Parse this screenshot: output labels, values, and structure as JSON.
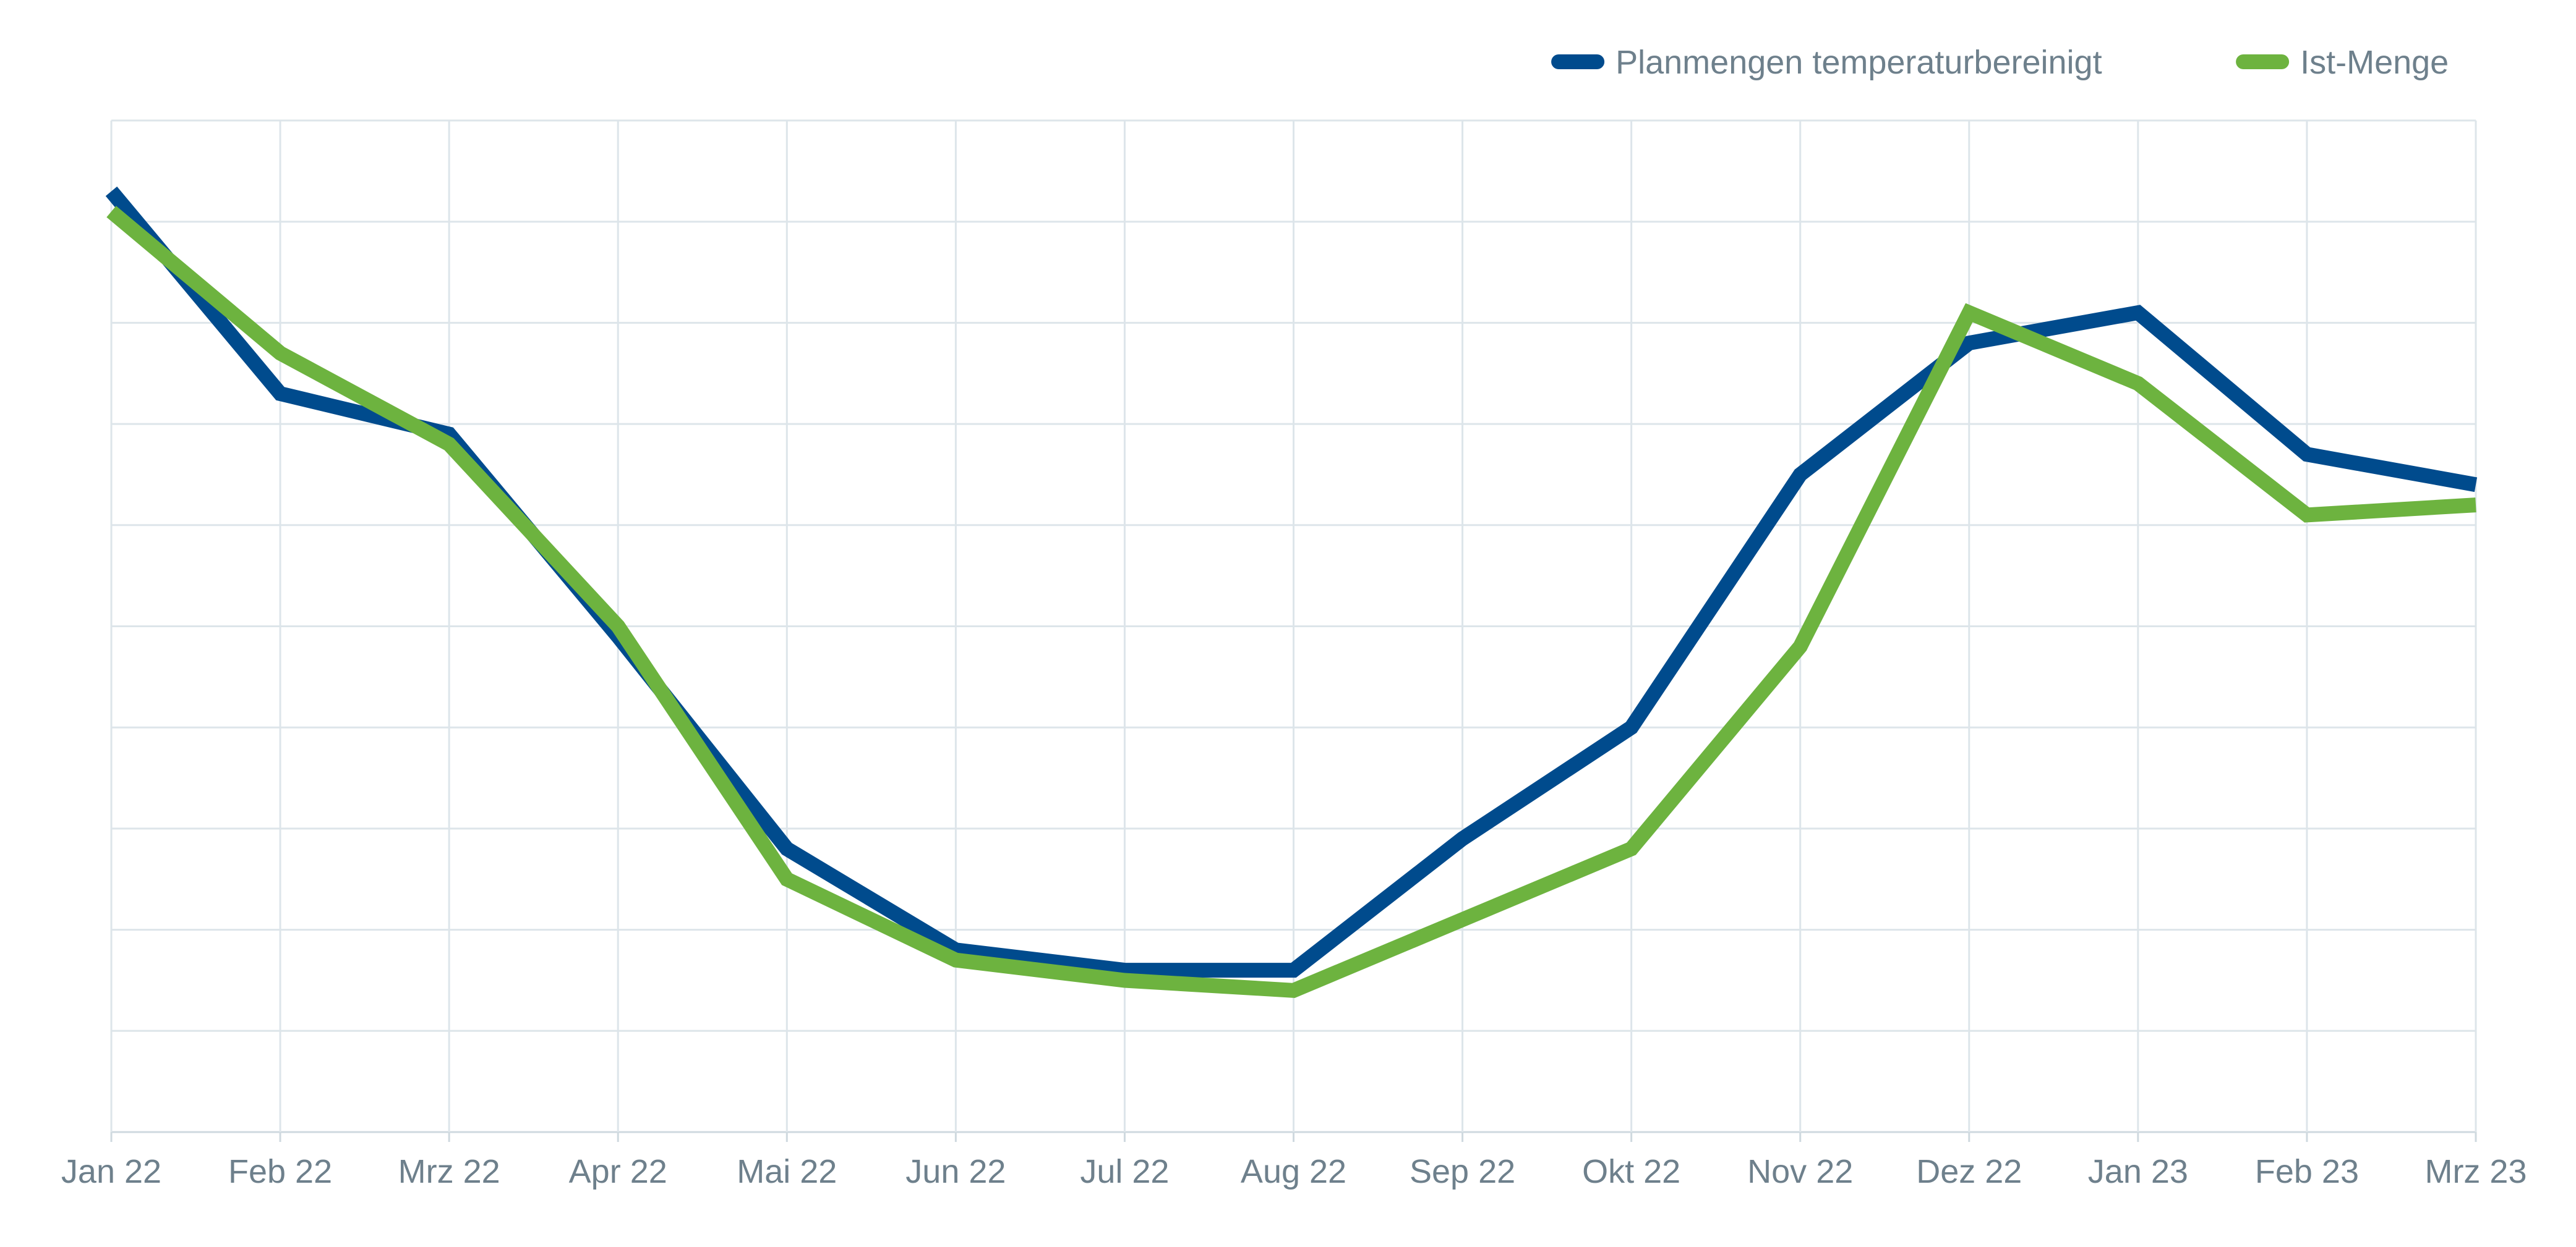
{
  "chart_data": {
    "type": "line",
    "categories": [
      "Jan 22",
      "Feb 22",
      "Mrz 22",
      "Apr 22",
      "Mai 22",
      "Jun 22",
      "Jul 22",
      "Aug 22",
      "Sep 22",
      "Okt 22",
      "Nov 22",
      "Dez 22",
      "Jan 23",
      "Feb 23",
      "Mrz 23"
    ],
    "series": [
      {
        "name": "Planmengen temperaturbereinigt",
        "color": "#004b8d",
        "values": [
          9.3,
          7.3,
          6.9,
          4.9,
          2.8,
          1.8,
          1.6,
          1.6,
          2.9,
          4.0,
          6.5,
          7.8,
          8.1,
          6.7,
          6.4
        ]
      },
      {
        "name": "Ist-Menge",
        "color": "#6db33f",
        "values": [
          9.1,
          7.7,
          6.8,
          5.0,
          2.5,
          1.7,
          1.5,
          1.4,
          2.1,
          2.8,
          4.8,
          8.1,
          7.4,
          6.1,
          6.2
        ]
      }
    ],
    "ylim": [
      0,
      10
    ],
    "y_gridlines": 10,
    "xlabel": "",
    "ylabel": "",
    "grid": true,
    "legend_position": "top-right"
  }
}
